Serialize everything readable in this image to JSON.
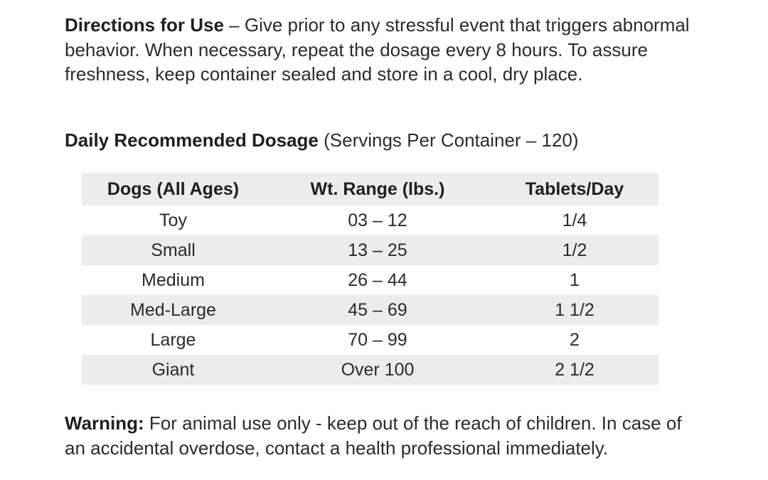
{
  "directions": {
    "label": "Directions for Use",
    "text": " – Give prior to any stressful event that triggers abnormal behavior. When necessary, repeat the dosage every 8 hours. To assure freshness, keep container sealed and store in a cool, dry place."
  },
  "dosage": {
    "label": "Daily Recommended Dosage",
    "note": " (Servings Per Container – 120)"
  },
  "table": {
    "headers": [
      "Dogs (All Ages)",
      "Wt. Range (lbs.)",
      "Tablets/Day"
    ],
    "rows": [
      [
        "Toy",
        "03 – 12",
        "1/4"
      ],
      [
        "Small",
        "13 – 25",
        "1/2"
      ],
      [
        "Medium",
        "26 – 44",
        "1"
      ],
      [
        "Med-Large",
        "45 – 69",
        "1 1/2"
      ],
      [
        "Large",
        "70 – 99",
        "2"
      ],
      [
        "Giant",
        "Over 100",
        "2 1/2"
      ]
    ]
  },
  "warning": {
    "label": "Warning:",
    "text": " For animal use only - keep out of the reach of children. In case of an accidental overdose, contact a health professional immediately."
  }
}
